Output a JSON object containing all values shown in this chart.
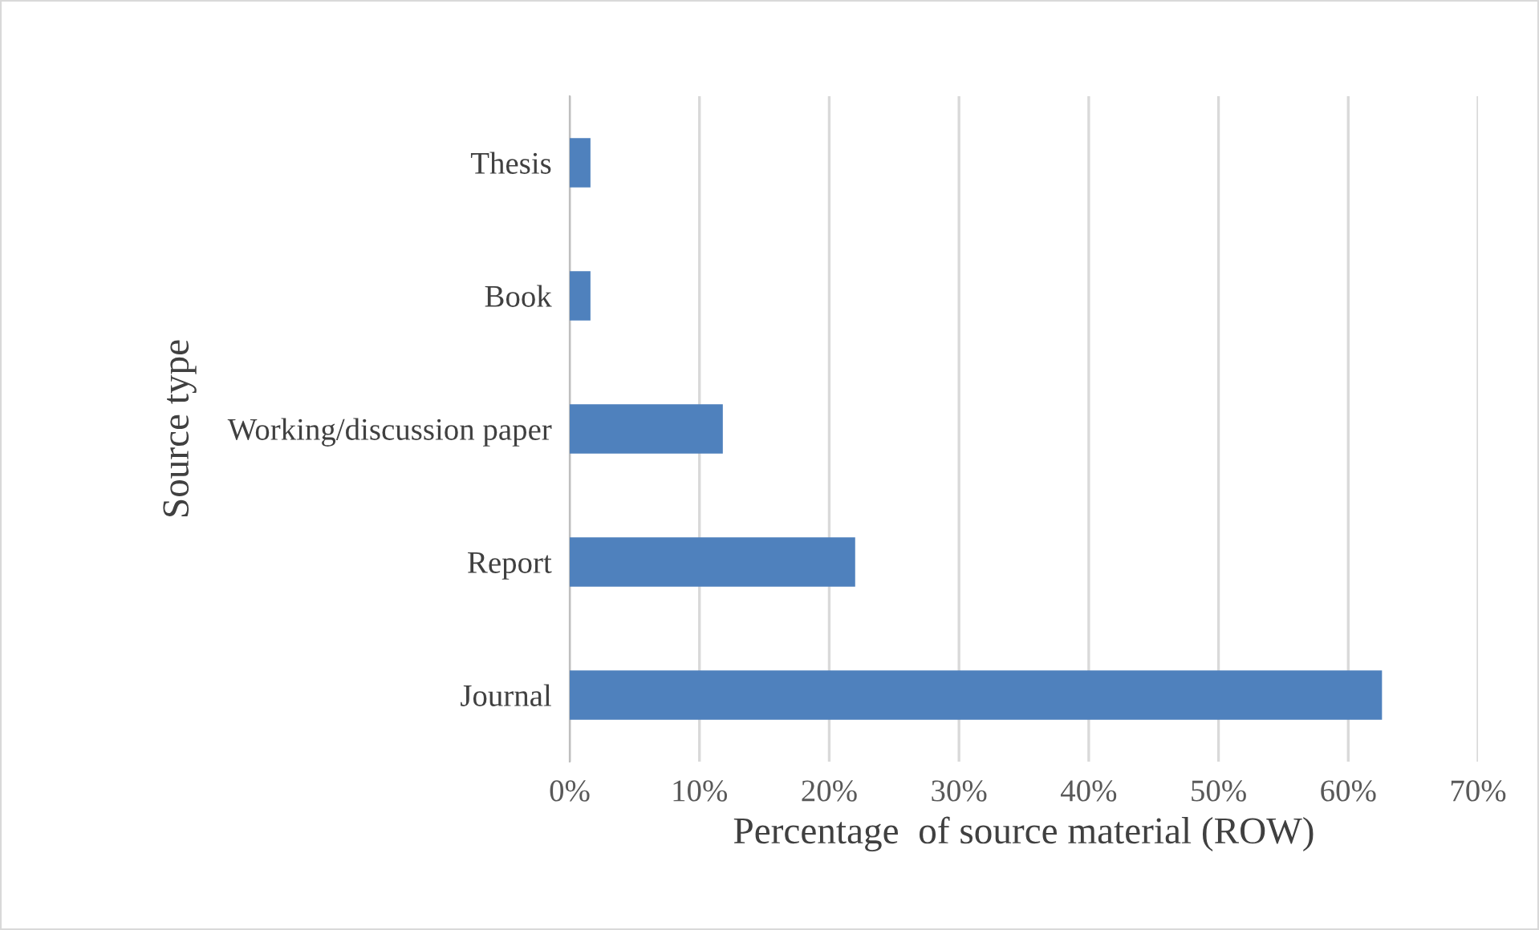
{
  "chart_data": {
    "type": "bar",
    "orientation": "horizontal",
    "xlabel": "Percentage  of source material (ROW)",
    "ylabel": "Source type",
    "categories": [
      "Thesis",
      "Book",
      "Working/discussion paper",
      "Report",
      "Journal"
    ],
    "values": [
      1.6,
      1.6,
      11.8,
      22,
      62.6
    ],
    "color": "#4f81bd",
    "xlim": [
      0,
      70
    ],
    "xticks": [
      {
        "value": 0,
        "label": "0%"
      },
      {
        "value": 10,
        "label": "10%"
      },
      {
        "value": 20,
        "label": "20%"
      },
      {
        "value": 30,
        "label": "30%"
      },
      {
        "value": 40,
        "label": "40%"
      },
      {
        "value": 50,
        "label": "50%"
      },
      {
        "value": 60,
        "label": "60%"
      },
      {
        "value": 70,
        "label": "70%"
      }
    ],
    "grid": "x"
  }
}
